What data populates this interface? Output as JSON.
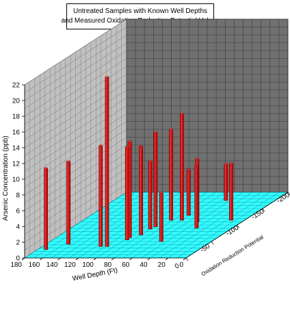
{
  "chart_data": {
    "type": "bar3d",
    "title_line1": "Untreated Samples with Known Well Depths",
    "title_line2": "and Measured Oxidation Reduction Potential Values",
    "xlabel": "Well Depth (Ft)",
    "ylabel": "Oxidation Reduction Potential",
    "zlabel": "Arsenic Concentration (ppb)",
    "x_ticks": [
      "0",
      "20",
      "40",
      "60",
      "80",
      "100",
      "120",
      "140",
      "160",
      "180"
    ],
    "y_ticks": [
      "0",
      "-50",
      "-100",
      "-150",
      "-200"
    ],
    "z_ticks": [
      "0",
      "2",
      "4",
      "6",
      "8",
      "10",
      "12",
      "14",
      "16",
      "18",
      "20",
      "22"
    ],
    "xlim": [
      0,
      180
    ],
    "ylim": [
      -200,
      0
    ],
    "zlim": [
      0,
      22
    ],
    "grid": true,
    "colors": {
      "floor": "#33ffff",
      "left_wall": "#c0c0c0",
      "back_wall": "#707070",
      "grid_light": "#8a8a8a",
      "grid_dark": "#3a3a3a",
      "grid_floor": "#1fa6b8",
      "bar": "#cc1111",
      "bar_dark": "#7a0000",
      "bar_light": "#ee3a3a"
    },
    "points": [
      {
        "depth": 171,
        "orp": -26,
        "arsenic": 10.3
      },
      {
        "depth": 155,
        "orp": -42,
        "arsenic": 10.5
      },
      {
        "depth": 55,
        "orp": -175,
        "arsenic": 4.6
      },
      {
        "depth": 115,
        "orp": -35,
        "arsenic": 12.8
      },
      {
        "depth": 71,
        "orp": -130,
        "arsenic": 5.8
      },
      {
        "depth": 90,
        "orp": -88,
        "arsenic": 8.6
      },
      {
        "depth": 90,
        "orp": -70,
        "arsenic": 11.3
      },
      {
        "depth": 108,
        "orp": -35,
        "arsenic": 21.5
      },
      {
        "depth": 82,
        "orp": -115,
        "arsenic": 11.5
      },
      {
        "depth": 98,
        "orp": -62,
        "arsenic": 12.2
      },
      {
        "depth": 97,
        "orp": -55,
        "arsenic": 11.8
      },
      {
        "depth": 88,
        "orp": -95,
        "arsenic": 12.0
      },
      {
        "depth": 70,
        "orp": -115,
        "arsenic": 13.5
      },
      {
        "depth": 50,
        "orp": -110,
        "arsenic": 8.0
      },
      {
        "depth": 56,
        "orp": -50,
        "arsenic": 6.2
      },
      {
        "depth": 40,
        "orp": -91,
        "arsenic": 8.0
      },
      {
        "depth": 15,
        "orp": -115,
        "arsenic": 7.2
      }
    ]
  }
}
